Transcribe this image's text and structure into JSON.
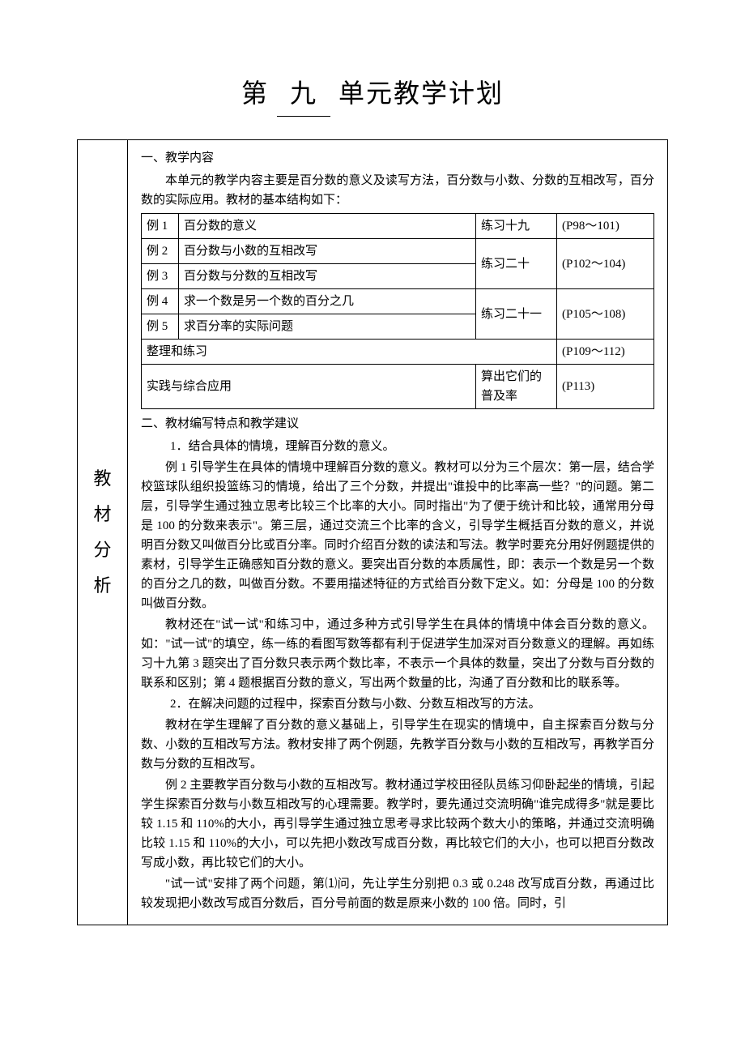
{
  "title": {
    "prefix": "第",
    "number": "九",
    "suffix": "单元教学计划"
  },
  "sidebar_label": [
    "教",
    "材",
    "分",
    "析"
  ],
  "section1": {
    "heading": "一、教学内容",
    "intro": "本单元的教学内容主要是百分数的意义及读写方法，百分数与小数、分数的互相改写，百分数的实际应用。教材的基本结构如下："
  },
  "table": {
    "rows": [
      {
        "ex": "例 1",
        "topic": "百分数的意义",
        "lx": "练习十九",
        "pg": "(P98～101)"
      },
      {
        "ex": "例 2",
        "topic": "百分数与小数的互相改写",
        "lx": "练习二十",
        "pg": "(P102～104)"
      },
      {
        "ex": "例 3",
        "topic": "百分数与分数的互相改写"
      },
      {
        "ex": "例 4",
        "topic": "求一个数是另一个数的百分之几",
        "lx": "练习二十一",
        "pg": "(P105～108)"
      },
      {
        "ex": "例 5",
        "topic": "求百分率的实际问题"
      }
    ],
    "zllx_label": "整理和练习",
    "zllx_pg": "(P109～112)",
    "sj_label": "实践与综合应用",
    "sj_topic": "算出它们的普及率",
    "sj_pg": "(P113)"
  },
  "section2": {
    "heading": "二、教材编写特点和教学建议",
    "sub1": "1．结合具体的情境，理解百分数的意义。",
    "p1": "例 1 引导学生在具体的情境中理解百分数的意义。教材可以分为三个层次：第一层，结合学校篮球队组织投篮练习的情境，给出了三个分数，并提出\"谁投中的比率高一些？\"的问题。第二层，引导学生通过独立思考比较三个比率的大小。同时指出\"为了便于统计和比较，通常用分母是 100 的分数来表示\"。第三层，通过交流三个比率的含义，引导学生概括百分数的意义，并说明百分数又叫做百分比或百分率。同时介绍百分数的读法和写法。教学时要充分用好例题提供的素材，引导学生正确感知百分数的意义。要突出百分数的本质属性，即：表示一个数是另一个数的百分之几的数，叫做百分数。不要用描述特征的方式给百分数下定义。如：分母是 100 的分数叫做百分数。",
    "p2": "教材还在\"试一试\"和练习中，通过多种方式引导学生在具体的情境中体会百分数的意义。如：\"试一试\"的填空，练一练的看图写数等都有利于促进学生加深对百分数意义的理解。再如练习十九第 3 题突出了百分数只表示两个数比率，不表示一个具体的数量，突出了分数与百分数的联系和区别；第 4 题根据百分数的意义，写出两个数量的比，沟通了百分数和比的联系等。",
    "sub2": "2．在解决问题的过程中，探索百分数与小数、分数互相改写的方法。",
    "p3": "教材在学生理解了百分数的意义基础上，引导学生在现实的情境中，自主探索百分数与分数、小数的互相改写方法。教材安排了两个例题，先教学百分数与小数的互相改写，再教学百分数与分数的互相改写。",
    "p4": "例 2 主要教学百分数与小数的互相改写。教材通过学校田径队员练习仰卧起坐的情境，引起学生探索百分数与小数互相改写的心理需要。教学时，要先通过交流明确\"谁完成得多\"就是要比较 1.15 和 110%的大小，再引导学生通过独立思考寻求比较两个数大小的策略，并通过交流明确比较 1.15 和 110%的大小，可以先把小数改写成百分数，再比较它们的大小，也可以把百分数改写成小数，再比较它们的大小。",
    "p5": "\"试一试\"安排了两个问题，第⑴问，先让学生分别把 0.3 或 0.248 改写成百分数，再通过比较发现把小数改写成百分数后，百分号前面的数是原来小数的 100 倍。同时，引"
  },
  "colors": {
    "border": "#000000",
    "text": "#000000",
    "bg": "#ffffff"
  }
}
